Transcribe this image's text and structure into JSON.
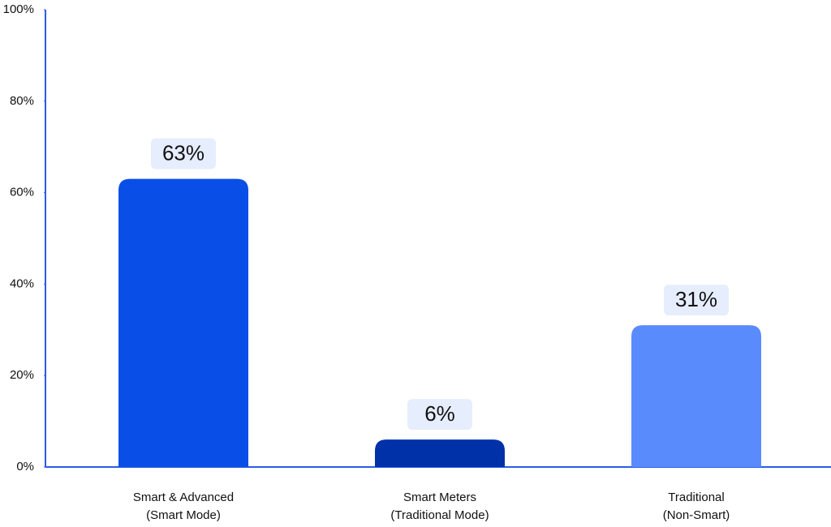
{
  "chart_data": {
    "type": "bar",
    "categories": [
      "Smart & Advanced\n(Smart Mode)",
      "Smart Meters\n(Traditional Mode)",
      "Traditional\n(Non-Smart)"
    ],
    "values": [
      63,
      6,
      31
    ],
    "value_labels": [
      "63%",
      "6%",
      "31%"
    ],
    "colors": [
      "#0a4ee8",
      "#0031a8",
      "#5a8bfd"
    ],
    "ylim": [
      0,
      100
    ],
    "yticks": [
      {
        "value": 0,
        "label": "0%"
      },
      {
        "value": 20,
        "label": "20%"
      },
      {
        "value": 40,
        "label": "40%"
      },
      {
        "value": 60,
        "label": "60%"
      },
      {
        "value": 80,
        "label": "80%"
      },
      {
        "value": 100,
        "label": "100%"
      }
    ],
    "grid": false
  }
}
